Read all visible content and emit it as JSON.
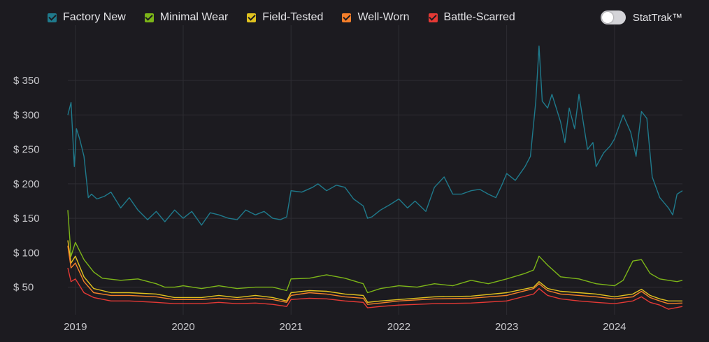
{
  "legend": {
    "items": [
      {
        "label": "Factory New",
        "color": "#1f7a8c"
      },
      {
        "label": "Minimal Wear",
        "color": "#7cb518"
      },
      {
        "label": "Field-Tested",
        "color": "#e0c21f"
      },
      {
        "label": "Well-Worn",
        "color": "#f57f2a"
      },
      {
        "label": "Battle-Scarred",
        "color": "#e53935"
      }
    ]
  },
  "toggle": {
    "label": "StatTrak™",
    "on": false
  },
  "chart_data": {
    "type": "line",
    "xlim": [
      2018.93,
      2024.63
    ],
    "ylim": [
      10,
      410
    ],
    "grid": true,
    "x_tick_labels": [
      "2019",
      "2020",
      "2021",
      "2022",
      "2023",
      "2024"
    ],
    "y_tick_labels": [
      "$ 50",
      "$ 100",
      "$ 150",
      "$ 200",
      "$ 250",
      "$ 300",
      "$ 350"
    ],
    "series": [
      {
        "name": "Factory New",
        "color": "#1f7a8c",
        "x": [
          2018.93,
          2018.96,
          2018.99,
          2019.01,
          2019.04,
          2019.08,
          2019.12,
          2019.15,
          2019.2,
          2019.27,
          2019.33,
          2019.42,
          2019.5,
          2019.58,
          2019.67,
          2019.75,
          2019.83,
          2019.92,
          2020.0,
          2020.08,
          2020.17,
          2020.25,
          2020.33,
          2020.42,
          2020.5,
          2020.58,
          2020.67,
          2020.75,
          2020.83,
          2020.9,
          2020.96,
          2021.0,
          2021.1,
          2021.2,
          2021.25,
          2021.33,
          2021.42,
          2021.5,
          2021.58,
          2021.67,
          2021.71,
          2021.75,
          2021.83,
          2021.92,
          2022.0,
          2022.08,
          2022.15,
          2022.25,
          2022.33,
          2022.42,
          2022.5,
          2022.58,
          2022.67,
          2022.75,
          2022.83,
          2022.9,
          2022.96,
          2023.0,
          2023.08,
          2023.17,
          2023.22,
          2023.27,
          2023.3,
          2023.33,
          2023.38,
          2023.42,
          2023.5,
          2023.54,
          2023.58,
          2023.63,
          2023.67,
          2023.71,
          2023.75,
          2023.8,
          2023.83,
          2023.9,
          2023.96,
          2024.0,
          2024.08,
          2024.15,
          2024.2,
          2024.25,
          2024.3,
          2024.35,
          2024.42,
          2024.5,
          2024.54,
          2024.58,
          2024.63
        ],
        "values": [
          300,
          318,
          225,
          280,
          265,
          240,
          180,
          185,
          178,
          182,
          188,
          165,
          180,
          162,
          148,
          160,
          145,
          162,
          150,
          160,
          140,
          158,
          155,
          150,
          148,
          162,
          155,
          160,
          150,
          148,
          152,
          190,
          188,
          195,
          200,
          190,
          198,
          195,
          178,
          168,
          150,
          152,
          162,
          170,
          178,
          165,
          175,
          160,
          195,
          210,
          185,
          185,
          190,
          192,
          185,
          180,
          200,
          215,
          205,
          225,
          240,
          320,
          400,
          320,
          310,
          330,
          290,
          260,
          310,
          280,
          330,
          290,
          250,
          260,
          225,
          245,
          255,
          265,
          300,
          275,
          240,
          305,
          295,
          210,
          180,
          165,
          155,
          185,
          190
        ]
      },
      {
        "name": "Minimal Wear",
        "color": "#7cb518",
        "x": [
          2018.93,
          2018.96,
          2019.0,
          2019.08,
          2019.17,
          2019.25,
          2019.42,
          2019.58,
          2019.75,
          2019.83,
          2019.92,
          2020.0,
          2020.17,
          2020.33,
          2020.5,
          2020.67,
          2020.83,
          2020.96,
          2021.0,
          2021.17,
          2021.33,
          2021.5,
          2021.67,
          2021.71,
          2021.83,
          2022.0,
          2022.17,
          2022.33,
          2022.5,
          2022.67,
          2022.83,
          2023.0,
          2023.17,
          2023.25,
          2023.3,
          2023.38,
          2023.5,
          2023.67,
          2023.83,
          2024.0,
          2024.08,
          2024.17,
          2024.25,
          2024.33,
          2024.42,
          2024.5,
          2024.58,
          2024.63
        ],
        "values": [
          162,
          95,
          115,
          90,
          72,
          63,
          60,
          62,
          55,
          50,
          50,
          52,
          48,
          52,
          48,
          50,
          50,
          45,
          62,
          63,
          68,
          63,
          55,
          42,
          48,
          52,
          50,
          55,
          52,
          60,
          55,
          62,
          70,
          75,
          95,
          82,
          65,
          62,
          55,
          52,
          60,
          88,
          90,
          70,
          62,
          60,
          58,
          60
        ]
      },
      {
        "name": "Field-Tested",
        "color": "#e0c21f",
        "x": [
          2018.93,
          2018.96,
          2019.0,
          2019.08,
          2019.17,
          2019.33,
          2019.5,
          2019.75,
          2019.92,
          2020.17,
          2020.33,
          2020.5,
          2020.67,
          2020.83,
          2020.96,
          2021.0,
          2021.17,
          2021.33,
          2021.5,
          2021.67,
          2021.71,
          2021.83,
          2022.0,
          2022.33,
          2022.67,
          2023.0,
          2023.25,
          2023.3,
          2023.38,
          2023.5,
          2023.67,
          2023.83,
          2024.0,
          2024.17,
          2024.25,
          2024.33,
          2024.42,
          2024.5,
          2024.63
        ],
        "values": [
          118,
          85,
          95,
          65,
          48,
          42,
          42,
          40,
          35,
          35,
          38,
          35,
          38,
          35,
          30,
          42,
          45,
          44,
          40,
          38,
          28,
          30,
          32,
          36,
          37,
          42,
          50,
          58,
          48,
          44,
          42,
          40,
          36,
          40,
          47,
          38,
          33,
          30,
          30
        ]
      },
      {
        "name": "Well-Worn",
        "color": "#f57f2a",
        "x": [
          2018.93,
          2018.96,
          2019.0,
          2019.08,
          2019.17,
          2019.33,
          2019.5,
          2019.75,
          2019.92,
          2020.17,
          2020.33,
          2020.5,
          2020.67,
          2020.83,
          2020.96,
          2021.0,
          2021.17,
          2021.33,
          2021.5,
          2021.67,
          2021.71,
          2021.83,
          2022.0,
          2022.33,
          2022.67,
          2023.0,
          2023.25,
          2023.3,
          2023.38,
          2023.5,
          2023.67,
          2023.83,
          2024.0,
          2024.17,
          2024.25,
          2024.33,
          2024.42,
          2024.5,
          2024.63
        ],
        "values": [
          110,
          78,
          85,
          58,
          42,
          38,
          38,
          36,
          32,
          32,
          34,
          32,
          34,
          32,
          28,
          38,
          42,
          40,
          36,
          34,
          25,
          27,
          30,
          33,
          34,
          38,
          48,
          55,
          45,
          40,
          38,
          36,
          33,
          36,
          44,
          35,
          30,
          26,
          27
        ]
      },
      {
        "name": "Battle-Scarred",
        "color": "#e53935",
        "x": [
          2018.93,
          2018.96,
          2019.0,
          2019.08,
          2019.17,
          2019.33,
          2019.5,
          2019.75,
          2019.92,
          2020.17,
          2020.33,
          2020.5,
          2020.67,
          2020.83,
          2020.96,
          2021.0,
          2021.17,
          2021.33,
          2021.5,
          2021.67,
          2021.71,
          2021.83,
          2022.0,
          2022.33,
          2022.67,
          2023.0,
          2023.25,
          2023.3,
          2023.38,
          2023.5,
          2023.67,
          2023.83,
          2024.0,
          2024.17,
          2024.25,
          2024.33,
          2024.42,
          2024.5,
          2024.63
        ],
        "values": [
          78,
          58,
          62,
          42,
          35,
          30,
          30,
          28,
          26,
          26,
          28,
          26,
          27,
          25,
          22,
          32,
          34,
          33,
          30,
          28,
          20,
          22,
          24,
          26,
          27,
          30,
          40,
          48,
          38,
          33,
          30,
          28,
          26,
          30,
          36,
          28,
          24,
          18,
          22
        ]
      }
    ]
  }
}
